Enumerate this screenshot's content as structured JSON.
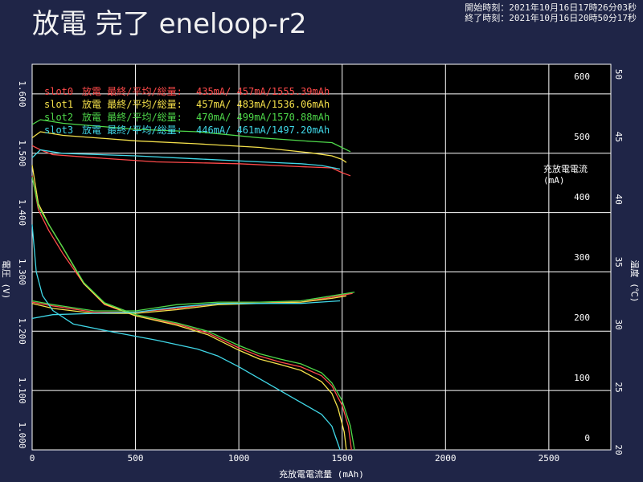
{
  "header": {
    "start_time": "開始時刻：2021年10月16日17時26分03秒",
    "end_time": "終了時刻：2021年10月16日20時50分17秒"
  },
  "chart_data": {
    "type": "line",
    "title": "放電 完了 eneloop-r2",
    "xlabel": "充放電電流量 (mAh)",
    "ylabel_voltage": "電圧 (V)",
    "ylabel_current": "充放電電流\n(mA)",
    "ylabel_temp": "温度 (℃)",
    "x_ticks": [
      0,
      500,
      1000,
      1500,
      2000,
      2500
    ],
    "xlim": [
      0,
      2800
    ],
    "voltage_ticks": [
      "1.000",
      "1.100",
      "1.200",
      "1.300",
      "1.400",
      "1.500",
      "1.600"
    ],
    "voltage_lim": [
      1.0,
      1.65
    ],
    "current_ticks": [
      0,
      100,
      200,
      300,
      400,
      500,
      600
    ],
    "current_lim": [
      -20,
      620
    ],
    "temp_ticks": [
      20,
      25,
      30,
      35,
      40,
      45,
      50
    ],
    "temp_lim": [
      20,
      50.8
    ],
    "grid": true,
    "legend": [
      {
        "name": "slot0",
        "label": "放電 最終/平均/総量:",
        "values": " 435mA/ 457mA/1555.39mAh",
        "color": "#ff4a4a"
      },
      {
        "name": "slot1",
        "label": "放電 最終/平均/総量:",
        "values": " 457mA/ 483mA/1536.06mAh",
        "color": "#f4e04a"
      },
      {
        "name": "slot2",
        "label": "放電 最終/平均/総量:",
        "values": " 470mA/ 499mA/1570.88mAh",
        "color": "#4ed84a"
      },
      {
        "name": "slot3",
        "label": "放電 最終/平均/総量:",
        "values": " 446mA/ 461mA/1497.20mAh",
        "color": "#40d8e8"
      }
    ],
    "series": [
      {
        "name": "slot0",
        "color": "#ff4a4a",
        "voltage": [
          [
            0,
            1.462
          ],
          [
            30,
            1.405
          ],
          [
            80,
            1.37
          ],
          [
            150,
            1.33
          ],
          [
            250,
            1.28
          ],
          [
            350,
            1.245
          ],
          [
            500,
            1.226
          ],
          [
            700,
            1.212
          ],
          [
            850,
            1.197
          ],
          [
            1000,
            1.172
          ],
          [
            1100,
            1.158
          ],
          [
            1200,
            1.148
          ],
          [
            1300,
            1.14
          ],
          [
            1400,
            1.125
          ],
          [
            1450,
            1.108
          ],
          [
            1500,
            1.075
          ],
          [
            1530,
            1.04
          ],
          [
            1545,
            1.0
          ]
        ],
        "current": [
          [
            0,
            485
          ],
          [
            40,
            478
          ],
          [
            100,
            470
          ],
          [
            300,
            465
          ],
          [
            600,
            458
          ],
          [
            1000,
            455
          ],
          [
            1300,
            450
          ],
          [
            1450,
            448
          ],
          [
            1500,
            440
          ],
          [
            1540,
            435
          ]
        ],
        "temperature": [
          [
            0,
            31.8
          ],
          [
            100,
            31.5
          ],
          [
            300,
            31.0
          ],
          [
            500,
            31.0
          ],
          [
            700,
            31.3
          ],
          [
            900,
            31.7
          ],
          [
            1100,
            31.8
          ],
          [
            1300,
            31.8
          ],
          [
            1450,
            32.2
          ],
          [
            1550,
            32.5
          ]
        ]
      },
      {
        "name": "slot1",
        "color": "#f4e04a",
        "voltage": [
          [
            0,
            1.48
          ],
          [
            30,
            1.415
          ],
          [
            80,
            1.38
          ],
          [
            150,
            1.34
          ],
          [
            250,
            1.28
          ],
          [
            350,
            1.246
          ],
          [
            500,
            1.226
          ],
          [
            700,
            1.21
          ],
          [
            850,
            1.194
          ],
          [
            1000,
            1.168
          ],
          [
            1100,
            1.153
          ],
          [
            1200,
            1.144
          ],
          [
            1300,
            1.134
          ],
          [
            1400,
            1.115
          ],
          [
            1450,
            1.095
          ],
          [
            1480,
            1.07
          ],
          [
            1510,
            1.03
          ],
          [
            1520,
            1.0
          ]
        ],
        "current": [
          [
            0,
            498
          ],
          [
            40,
            508
          ],
          [
            150,
            502
          ],
          [
            500,
            493
          ],
          [
            800,
            488
          ],
          [
            1100,
            482
          ],
          [
            1350,
            473
          ],
          [
            1450,
            468
          ],
          [
            1500,
            462
          ],
          [
            1520,
            457
          ]
        ],
        "temperature": [
          [
            0,
            31.7
          ],
          [
            100,
            31.3
          ],
          [
            300,
            30.9
          ],
          [
            500,
            30.9
          ],
          [
            700,
            31.2
          ],
          [
            900,
            31.6
          ],
          [
            1100,
            31.7
          ],
          [
            1300,
            31.8
          ],
          [
            1450,
            32.1
          ],
          [
            1520,
            32.3
          ]
        ]
      },
      {
        "name": "slot2",
        "color": "#4ed84a",
        "voltage": [
          [
            0,
            1.46
          ],
          [
            30,
            1.41
          ],
          [
            80,
            1.38
          ],
          [
            150,
            1.34
          ],
          [
            250,
            1.282
          ],
          [
            350,
            1.248
          ],
          [
            500,
            1.228
          ],
          [
            700,
            1.214
          ],
          [
            850,
            1.2
          ],
          [
            1000,
            1.176
          ],
          [
            1100,
            1.162
          ],
          [
            1200,
            1.153
          ],
          [
            1300,
            1.145
          ],
          [
            1400,
            1.13
          ],
          [
            1450,
            1.113
          ],
          [
            1500,
            1.083
          ],
          [
            1540,
            1.04
          ],
          [
            1560,
            1.0
          ]
        ],
        "current": [
          [
            0,
            520
          ],
          [
            40,
            528
          ],
          [
            150,
            522
          ],
          [
            500,
            512
          ],
          [
            800,
            508
          ],
          [
            1100,
            498
          ],
          [
            1350,
            492
          ],
          [
            1450,
            490
          ],
          [
            1540,
            475
          ]
        ],
        "temperature": [
          [
            0,
            31.9
          ],
          [
            100,
            31.6
          ],
          [
            300,
            31.1
          ],
          [
            500,
            31.1
          ],
          [
            700,
            31.6
          ],
          [
            900,
            31.8
          ],
          [
            1100,
            31.8
          ],
          [
            1300,
            31.9
          ],
          [
            1450,
            32.3
          ],
          [
            1560,
            32.6
          ]
        ]
      },
      {
        "name": "slot3",
        "color": "#40d8e8",
        "voltage": [
          [
            0,
            1.38
          ],
          [
            20,
            1.3
          ],
          [
            50,
            1.26
          ],
          [
            100,
            1.235
          ],
          [
            200,
            1.212
          ],
          [
            400,
            1.198
          ],
          [
            600,
            1.185
          ],
          [
            800,
            1.17
          ],
          [
            900,
            1.158
          ],
          [
            1000,
            1.14
          ],
          [
            1100,
            1.12
          ],
          [
            1200,
            1.1
          ],
          [
            1300,
            1.08
          ],
          [
            1400,
            1.06
          ],
          [
            1450,
            1.04
          ],
          [
            1480,
            1.01
          ],
          [
            1490,
            1.0
          ]
        ],
        "current": [
          [
            0,
            465
          ],
          [
            40,
            478
          ],
          [
            150,
            472
          ],
          [
            500,
            468
          ],
          [
            800,
            463
          ],
          [
            1100,
            458
          ],
          [
            1300,
            455
          ],
          [
            1400,
            452
          ],
          [
            1490,
            446
          ]
        ],
        "temperature": [
          [
            0,
            30.5
          ],
          [
            100,
            30.8
          ],
          [
            300,
            30.9
          ],
          [
            500,
            31.0
          ],
          [
            700,
            31.4
          ],
          [
            900,
            31.7
          ],
          [
            1100,
            31.7
          ],
          [
            1300,
            31.7
          ],
          [
            1490,
            31.9
          ]
        ]
      }
    ]
  }
}
